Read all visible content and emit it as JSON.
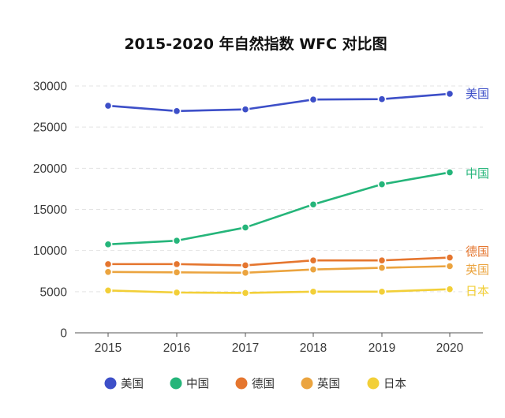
{
  "chart_data": {
    "type": "line",
    "title": "2015-2020 年自然指数 WFC 对比图",
    "xlabel": "",
    "ylabel": "",
    "categories": [
      "2015",
      "2016",
      "2017",
      "2018",
      "2019",
      "2020"
    ],
    "y_ticks": [
      "0",
      "5000",
      "10000",
      "15000",
      "20000",
      "25000",
      "30000"
    ],
    "ylim": [
      0,
      30000
    ],
    "grid": true,
    "legend_position": "bottom",
    "series": [
      {
        "name": "美国",
        "color": "#3d4fc8",
        "values": [
          27600,
          26950,
          27150,
          28350,
          28400,
          29050
        ]
      },
      {
        "name": "中国",
        "color": "#25b57a",
        "values": [
          10750,
          11200,
          12800,
          15600,
          18050,
          19500
        ]
      },
      {
        "name": "德国",
        "color": "#e5762f",
        "values": [
          8350,
          8350,
          8200,
          8800,
          8800,
          9150
        ]
      },
      {
        "name": "英国",
        "color": "#eba43f",
        "values": [
          7400,
          7350,
          7300,
          7700,
          7900,
          8100
        ]
      },
      {
        "name": "日本",
        "color": "#f2cf38",
        "values": [
          5150,
          4900,
          4850,
          5000,
          5000,
          5300
        ]
      }
    ]
  }
}
